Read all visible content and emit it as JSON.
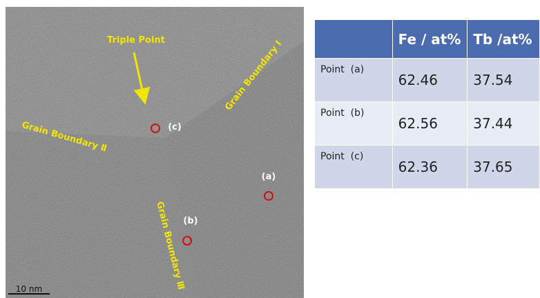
{
  "image": {
    "triple_point": "Triple Point",
    "grain_boundary_1": "Grain Boundary Ⅰ",
    "grain_boundary_2": "Grain Boundary Ⅱ",
    "grain_boundary_3": "Grain Boundary Ⅲ",
    "point_labels": [
      "(a)",
      "(b)",
      "(c)"
    ],
    "scale_bar": "10 nm"
  },
  "table": {
    "header": [
      "Fe / at%",
      "Tb /at%"
    ],
    "rows": [
      [
        "Point  (a)",
        "62.46",
        "37.54"
      ],
      [
        "Point  (b)",
        "62.56",
        "37.44"
      ],
      [
        "Point  (c)",
        "62.36",
        "37.65"
      ]
    ]
  }
}
